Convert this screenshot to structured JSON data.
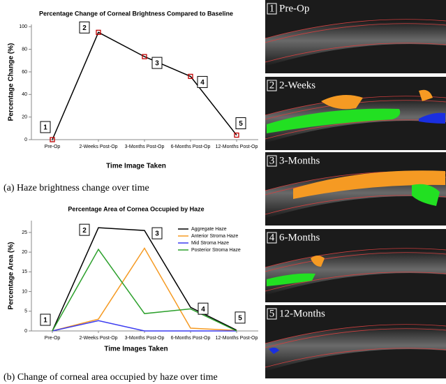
{
  "chart_data": [
    {
      "type": "line",
      "title": "Percentage Change of Corneal Brightness Compared to Baseline",
      "xlabel": "Time Image Taken",
      "ylabel": "Percentage Change (%)",
      "categories": [
        "Pre-Op",
        "2-Weeks Post-Op",
        "3-Months Post-Op",
        "6-Months Post-Op",
        "12-Months Post-Op"
      ],
      "values": [
        0,
        95,
        73.5,
        56,
        4
      ],
      "color": "#000000",
      "marker_color": "#c00000",
      "ylim": [
        0,
        102
      ],
      "yticks": [
        0,
        20,
        40,
        60,
        80,
        100
      ],
      "annotations": [
        "1",
        "2",
        "3",
        "4",
        "5"
      ],
      "caption": "(a) Haze brightness change over time"
    },
    {
      "type": "multiline",
      "title": "Percentage Area of Cornea Occupied by Haze",
      "xlabel": "Time Images Taken",
      "ylabel": "Percentage Area (%)",
      "categories": [
        "Pre-Op",
        "2-Weeks Post-Op",
        "3-Months Post-Op",
        "6-Months Post-Op",
        "12-Months Post-Op"
      ],
      "series": [
        {
          "name": "Aggregate Haze",
          "color": "#000000",
          "values": [
            0,
            26.2,
            25.5,
            6,
            0.2
          ]
        },
        {
          "name": "Anterior Stroma Haze",
          "color": "#f59a23",
          "values": [
            0,
            3,
            21,
            0.7,
            0.1
          ]
        },
        {
          "name": "Mid Stroma Haze",
          "color": "#3c3cf0",
          "values": [
            0,
            2.6,
            0,
            0,
            0
          ]
        },
        {
          "name": "Posterior Stroma Haze",
          "color": "#2ca02c",
          "values": [
            0,
            20.7,
            4.4,
            5.6,
            0
          ]
        }
      ],
      "ylim": [
        0,
        28
      ],
      "yticks": [
        0,
        5,
        10,
        15,
        20,
        25
      ],
      "legend": "upper-right",
      "annotations": [
        "1",
        "2",
        "3",
        "4",
        "5"
      ],
      "caption": "(b) Change of corneal area occupied by haze over time"
    }
  ],
  "panels": [
    {
      "number": "1",
      "label": "Pre-Op"
    },
    {
      "number": "2",
      "label": "2-Weeks"
    },
    {
      "number": "3",
      "label": "3-Months"
    },
    {
      "number": "4",
      "label": "6-Months"
    },
    {
      "number": "5",
      "label": "12-Months"
    }
  ]
}
